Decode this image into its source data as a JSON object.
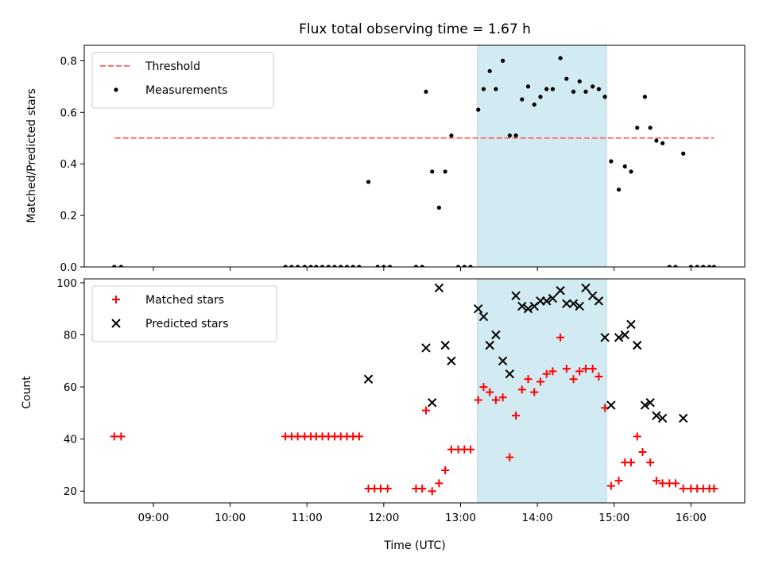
{
  "chart_data": [
    {
      "type": "scatter",
      "title": "Flux total observing time = 1.67 h",
      "xlabel": "",
      "ylabel": "Matched/Predicted stars",
      "xlim": [
        8.1,
        16.7
      ],
      "ylim": [
        0,
        0.86
      ],
      "xticks": [
        "09:00",
        "10:00",
        "11:00",
        "12:00",
        "13:00",
        "14:00",
        "15:00",
        "16:00"
      ],
      "xtick_values": [
        9,
        10,
        11,
        12,
        13,
        14,
        15,
        16
      ],
      "yticks": [
        "0.0",
        "0.2",
        "0.4",
        "0.6",
        "0.8"
      ],
      "ytick_values": [
        0,
        0.2,
        0.4,
        0.6,
        0.8
      ],
      "grid": false,
      "legend_position": "top-left",
      "highlight_span": {
        "start": 13.22,
        "end": 14.9,
        "color": "#add8e6"
      },
      "threshold": {
        "name": "Threshold",
        "value": 0.5,
        "x_start": 8.5,
        "x_end": 16.3,
        "color": "#ff7070",
        "style": "dashed"
      },
      "series": [
        {
          "name": "Measurements",
          "color": "#000000",
          "marker": "dot",
          "x": [
            8.49,
            8.58,
            10.72,
            10.8,
            10.88,
            10.97,
            11.05,
            11.12,
            11.2,
            11.28,
            11.36,
            11.44,
            11.52,
            11.6,
            11.68,
            11.8,
            11.92,
            12.0,
            12.08,
            12.42,
            12.5,
            12.55,
            12.63,
            12.72,
            12.8,
            12.88,
            12.97,
            13.05,
            13.13,
            13.23,
            13.3,
            13.38,
            13.46,
            13.55,
            13.64,
            13.72,
            13.8,
            13.88,
            13.96,
            14.04,
            14.12,
            14.2,
            14.3,
            14.38,
            14.47,
            14.55,
            14.63,
            14.72,
            14.8,
            14.88,
            14.96,
            15.06,
            15.14,
            15.22,
            15.3,
            15.4,
            15.47,
            15.55,
            15.63,
            15.72,
            15.8,
            15.9,
            16.0,
            16.08,
            16.16,
            16.24,
            16.3
          ],
          "y": [
            0.0,
            0.0,
            0.0,
            0.0,
            0.0,
            0.0,
            0.0,
            0.0,
            0.0,
            0.0,
            0.0,
            0.0,
            0.0,
            0.0,
            0.0,
            0.33,
            0.0,
            0.0,
            0.0,
            0.0,
            0.0,
            0.68,
            0.37,
            0.23,
            0.37,
            0.51,
            0.0,
            0.0,
            0.0,
            0.61,
            0.69,
            0.76,
            0.69,
            0.8,
            0.51,
            0.51,
            0.65,
            0.7,
            0.63,
            0.66,
            0.69,
            0.69,
            0.81,
            0.73,
            0.68,
            0.72,
            0.68,
            0.7,
            0.69,
            0.66,
            0.41,
            0.3,
            0.39,
            0.37,
            0.54,
            0.66,
            0.54,
            0.49,
            0.48,
            0.0,
            0.0,
            0.44,
            0.0,
            0.0,
            0.0,
            0.0,
            0.0
          ]
        }
      ]
    },
    {
      "type": "scatter",
      "title": "",
      "xlabel": "Time (UTC)",
      "ylabel": "Count",
      "xlim": [
        8.1,
        16.7
      ],
      "ylim": [
        15.5,
        101.5
      ],
      "xticks": [
        "09:00",
        "10:00",
        "11:00",
        "12:00",
        "13:00",
        "14:00",
        "15:00",
        "16:00"
      ],
      "xtick_values": [
        9,
        10,
        11,
        12,
        13,
        14,
        15,
        16
      ],
      "yticks": [
        "20",
        "40",
        "60",
        "80",
        "100"
      ],
      "ytick_values": [
        20,
        40,
        60,
        80,
        100
      ],
      "grid": false,
      "legend_position": "top-left",
      "highlight_span": {
        "start": 13.22,
        "end": 14.9,
        "color": "#add8e6"
      },
      "series": [
        {
          "name": "Matched stars",
          "color": "#ff0000",
          "marker": "plus",
          "x": [
            8.49,
            8.58,
            10.72,
            10.8,
            10.88,
            10.97,
            11.05,
            11.12,
            11.2,
            11.28,
            11.36,
            11.44,
            11.52,
            11.6,
            11.68,
            11.8,
            11.88,
            11.96,
            12.05,
            12.42,
            12.5,
            12.55,
            12.63,
            12.72,
            12.8,
            12.88,
            12.97,
            13.05,
            13.13,
            13.23,
            13.3,
            13.38,
            13.46,
            13.55,
            13.64,
            13.72,
            13.8,
            13.88,
            13.96,
            14.04,
            14.12,
            14.2,
            14.3,
            14.38,
            14.47,
            14.55,
            14.63,
            14.72,
            14.8,
            14.88,
            14.96,
            15.06,
            15.14,
            15.22,
            15.3,
            15.37,
            15.47,
            15.55,
            15.63,
            15.72,
            15.8,
            15.9,
            16.0,
            16.08,
            16.16,
            16.24,
            16.3
          ],
          "y": [
            41,
            41,
            41,
            41,
            41,
            41,
            41,
            41,
            41,
            41,
            41,
            41,
            41,
            41,
            41,
            21,
            21,
            21,
            21,
            21,
            21,
            51,
            20,
            23,
            28,
            36,
            36,
            36,
            36,
            55,
            60,
            58,
            55,
            56,
            33,
            49,
            59,
            63,
            58,
            62,
            65,
            66,
            79,
            67,
            63,
            66,
            67,
            67,
            64,
            52,
            22,
            24,
            31,
            31,
            41,
            35,
            31,
            24,
            23,
            23,
            23,
            21,
            21,
            21,
            21,
            21,
            21
          ]
        },
        {
          "name": "Predicted stars",
          "color": "#000000",
          "marker": "x",
          "x": [
            11.8,
            12.55,
            12.63,
            12.72,
            12.8,
            12.88,
            13.23,
            13.3,
            13.38,
            13.46,
            13.55,
            13.64,
            13.72,
            13.8,
            13.88,
            13.96,
            14.04,
            14.12,
            14.2,
            14.3,
            14.38,
            14.47,
            14.55,
            14.63,
            14.72,
            14.8,
            14.88,
            14.96,
            15.06,
            15.14,
            15.22,
            15.3,
            15.4,
            15.47,
            15.55,
            15.63,
            15.9
          ],
          "y": [
            63,
            75,
            54,
            98,
            76,
            70,
            90,
            87,
            76,
            80,
            70,
            65,
            95,
            91,
            90,
            91,
            93,
            93,
            94,
            97,
            92,
            92,
            91,
            98,
            95,
            93,
            79,
            53,
            79,
            80,
            84,
            76,
            53,
            54,
            49,
            48,
            48
          ]
        }
      ]
    }
  ]
}
